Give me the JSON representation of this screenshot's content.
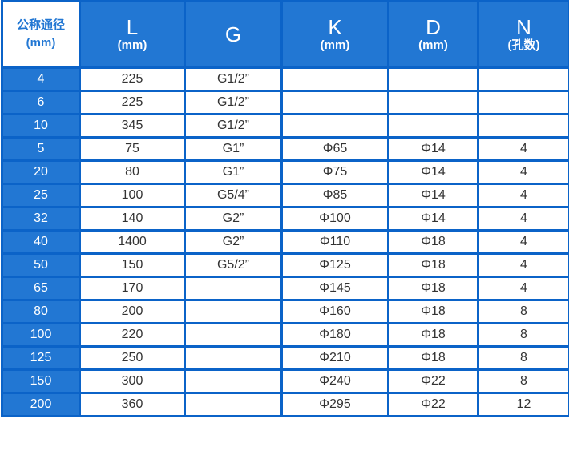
{
  "headers": [
    {
      "title": "公称通径",
      "unit": "(mm)"
    },
    {
      "title": "L",
      "unit": "(mm)"
    },
    {
      "title": "G",
      "unit": ""
    },
    {
      "title": "K",
      "unit": "(mm)"
    },
    {
      "title": "D",
      "unit": "(mm)"
    },
    {
      "title": "N",
      "unit": "(孔数)"
    }
  ],
  "rows": [
    [
      "4",
      "225",
      "G1/2”",
      "",
      "",
      ""
    ],
    [
      "6",
      "225",
      "G1/2”",
      "",
      "",
      ""
    ],
    [
      "10",
      "345",
      "G1/2”",
      "",
      "",
      ""
    ],
    [
      "5",
      "75",
      "G1”",
      "Φ65",
      "Φ14",
      "4"
    ],
    [
      "20",
      "80",
      "G1”",
      "Φ75",
      "Φ14",
      "4"
    ],
    [
      "25",
      "100",
      "G5/4”",
      "Φ85",
      "Φ14",
      "4"
    ],
    [
      "32",
      "140",
      "G2”",
      "Φ100",
      "Φ14",
      "4"
    ],
    [
      "40",
      "1400",
      "G2”",
      "Φ110",
      "Φ18",
      "4"
    ],
    [
      "50",
      "150",
      "G5/2”",
      "Φ125",
      "Φ18",
      "4"
    ],
    [
      "65",
      "170",
      "",
      "Φ145",
      "Φ18",
      "4"
    ],
    [
      "80",
      "200",
      "",
      "Φ160",
      "Φ18",
      "8"
    ],
    [
      "100",
      "220",
      "",
      "Φ180",
      "Φ18",
      "8"
    ],
    [
      "125",
      "250",
      "",
      "Φ210",
      "Φ18",
      "8"
    ],
    [
      "150",
      "300",
      "",
      "Φ240",
      "Φ22",
      "8"
    ],
    [
      "200",
      "360",
      "",
      "Φ295",
      "Φ22",
      "12"
    ]
  ],
  "colors": {
    "accent": "#2277d3",
    "border": "#0b63c8"
  }
}
